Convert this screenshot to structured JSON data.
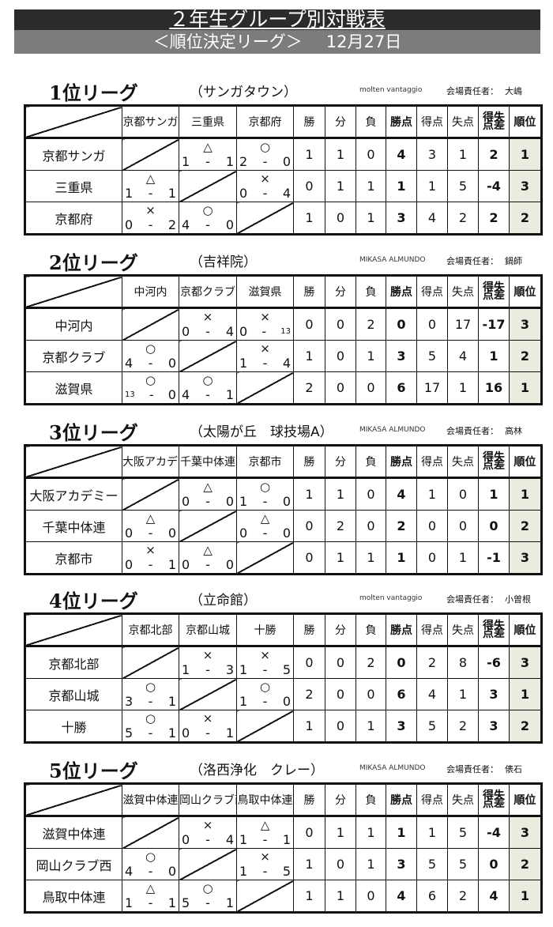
{
  "header": {
    "title": "２年生グループ別対戦表",
    "subtitle": "＜順位決定リーグ＞",
    "date": "12月27日"
  },
  "columns": {
    "win": "勝",
    "draw": "分",
    "loss": "負",
    "points": "勝点",
    "gf": "得点",
    "ga": "失点",
    "gd": "得失点差",
    "rank": "順位"
  },
  "dash": "-",
  "manager_label": "会場責任者：",
  "leagues": [
    {
      "title": "1位リーグ",
      "venue": "（サンガタウン）",
      "ball": "molten vantaggio",
      "manager": "大嶋",
      "teams": [
        "京都サンガ",
        "三重県",
        "京都府"
      ],
      "results": [
        [
          null,
          {
            "mark": "△",
            "score": [
              "1",
              "1"
            ]
          },
          {
            "mark": "○",
            "score": [
              "2",
              "0"
            ]
          }
        ],
        [
          {
            "mark": "△",
            "score": [
              "1",
              "1"
            ]
          },
          null,
          {
            "mark": "×",
            "score": [
              "0",
              "4"
            ]
          }
        ],
        [
          {
            "mark": "×",
            "score": [
              "0",
              "2"
            ]
          },
          {
            "mark": "○",
            "score": [
              "4",
              "0"
            ]
          },
          null
        ]
      ],
      "stats": [
        [
          "1",
          "1",
          "0",
          "4",
          "3",
          "1",
          "2",
          "1"
        ],
        [
          "0",
          "1",
          "1",
          "1",
          "1",
          "5",
          "-4",
          "3"
        ],
        [
          "1",
          "0",
          "1",
          "3",
          "4",
          "2",
          "2",
          "2"
        ]
      ]
    },
    {
      "title": "2位リーグ",
      "venue": "（吉祥院）",
      "ball": "MIKASA ALMUNDO",
      "manager": "鍋師",
      "teams": [
        "中河内",
        "京都クラブ",
        "滋賀県"
      ],
      "results": [
        [
          null,
          {
            "mark": "×",
            "score": [
              "0",
              "4"
            ]
          },
          {
            "mark": "×",
            "score": [
              "0",
              "13"
            ]
          }
        ],
        [
          {
            "mark": "○",
            "score": [
              "4",
              "0"
            ]
          },
          null,
          {
            "mark": "×",
            "score": [
              "1",
              "4"
            ]
          }
        ],
        [
          {
            "mark": "○",
            "score": [
              "13",
              "0"
            ]
          },
          {
            "mark": "○",
            "score": [
              "4",
              "1"
            ]
          },
          null
        ]
      ],
      "stats": [
        [
          "0",
          "0",
          "2",
          "0",
          "0",
          "17",
          "-17",
          "3"
        ],
        [
          "1",
          "0",
          "1",
          "3",
          "5",
          "4",
          "1",
          "2"
        ],
        [
          "2",
          "0",
          "0",
          "6",
          "17",
          "1",
          "16",
          "1"
        ]
      ]
    },
    {
      "title": "3位リーグ",
      "venue": "（太陽が丘　球技場A）",
      "ball": "MIKASA ALMUNDO",
      "manager": "高林",
      "teams": [
        "大阪アカデミー",
        "千葉中体連",
        "京都市"
      ],
      "results": [
        [
          null,
          {
            "mark": "△",
            "score": [
              "0",
              "0"
            ]
          },
          {
            "mark": "○",
            "score": [
              "1",
              "0"
            ]
          }
        ],
        [
          {
            "mark": "△",
            "score": [
              "0",
              "0"
            ]
          },
          null,
          {
            "mark": "△",
            "score": [
              "0",
              "0"
            ]
          }
        ],
        [
          {
            "mark": "×",
            "score": [
              "0",
              "1"
            ]
          },
          {
            "mark": "△",
            "score": [
              "0",
              "0"
            ]
          },
          null
        ]
      ],
      "stats": [
        [
          "1",
          "1",
          "0",
          "4",
          "1",
          "0",
          "1",
          "1"
        ],
        [
          "0",
          "2",
          "0",
          "2",
          "0",
          "0",
          "0",
          "2"
        ],
        [
          "0",
          "1",
          "1",
          "1",
          "0",
          "1",
          "-1",
          "3"
        ]
      ]
    },
    {
      "title": "4位リーグ",
      "venue": "（立命館）",
      "ball": "molten vantaggio",
      "manager": "小曽根",
      "teams": [
        "京都北部",
        "京都山城",
        "十勝"
      ],
      "results": [
        [
          null,
          {
            "mark": "×",
            "score": [
              "1",
              "3"
            ]
          },
          {
            "mark": "×",
            "score": [
              "1",
              "5"
            ]
          }
        ],
        [
          {
            "mark": "○",
            "score": [
              "3",
              "1"
            ]
          },
          null,
          {
            "mark": "○",
            "score": [
              "1",
              "0"
            ]
          }
        ],
        [
          {
            "mark": "○",
            "score": [
              "5",
              "1"
            ]
          },
          {
            "mark": "×",
            "score": [
              "0",
              "1"
            ]
          },
          null
        ]
      ],
      "stats": [
        [
          "0",
          "0",
          "2",
          "0",
          "2",
          "8",
          "-6",
          "3"
        ],
        [
          "2",
          "0",
          "0",
          "6",
          "4",
          "1",
          "3",
          "1"
        ],
        [
          "1",
          "0",
          "1",
          "3",
          "5",
          "2",
          "3",
          "2"
        ]
      ]
    },
    {
      "title": "5位リーグ",
      "venue": "（洛西浄化　クレー）",
      "ball": "MIKASA ALMUNDO",
      "manager": "俵石",
      "teams": [
        "滋賀中体連",
        "岡山クラブ西",
        "鳥取中体連"
      ],
      "results": [
        [
          null,
          {
            "mark": "×",
            "score": [
              "0",
              "4"
            ]
          },
          {
            "mark": "△",
            "score": [
              "1",
              "1"
            ]
          }
        ],
        [
          {
            "mark": "○",
            "score": [
              "4",
              "0"
            ]
          },
          null,
          {
            "mark": "×",
            "score": [
              "1",
              "5"
            ]
          }
        ],
        [
          {
            "mark": "△",
            "score": [
              "1",
              "1"
            ]
          },
          {
            "mark": "○",
            "score": [
              "5",
              "1"
            ]
          },
          null
        ]
      ],
      "stats": [
        [
          "0",
          "1",
          "1",
          "1",
          "1",
          "5",
          "-4",
          "3"
        ],
        [
          "1",
          "0",
          "1",
          "3",
          "5",
          "5",
          "0",
          "2"
        ],
        [
          "1",
          "1",
          "0",
          "4",
          "6",
          "2",
          "4",
          "1"
        ]
      ]
    }
  ]
}
